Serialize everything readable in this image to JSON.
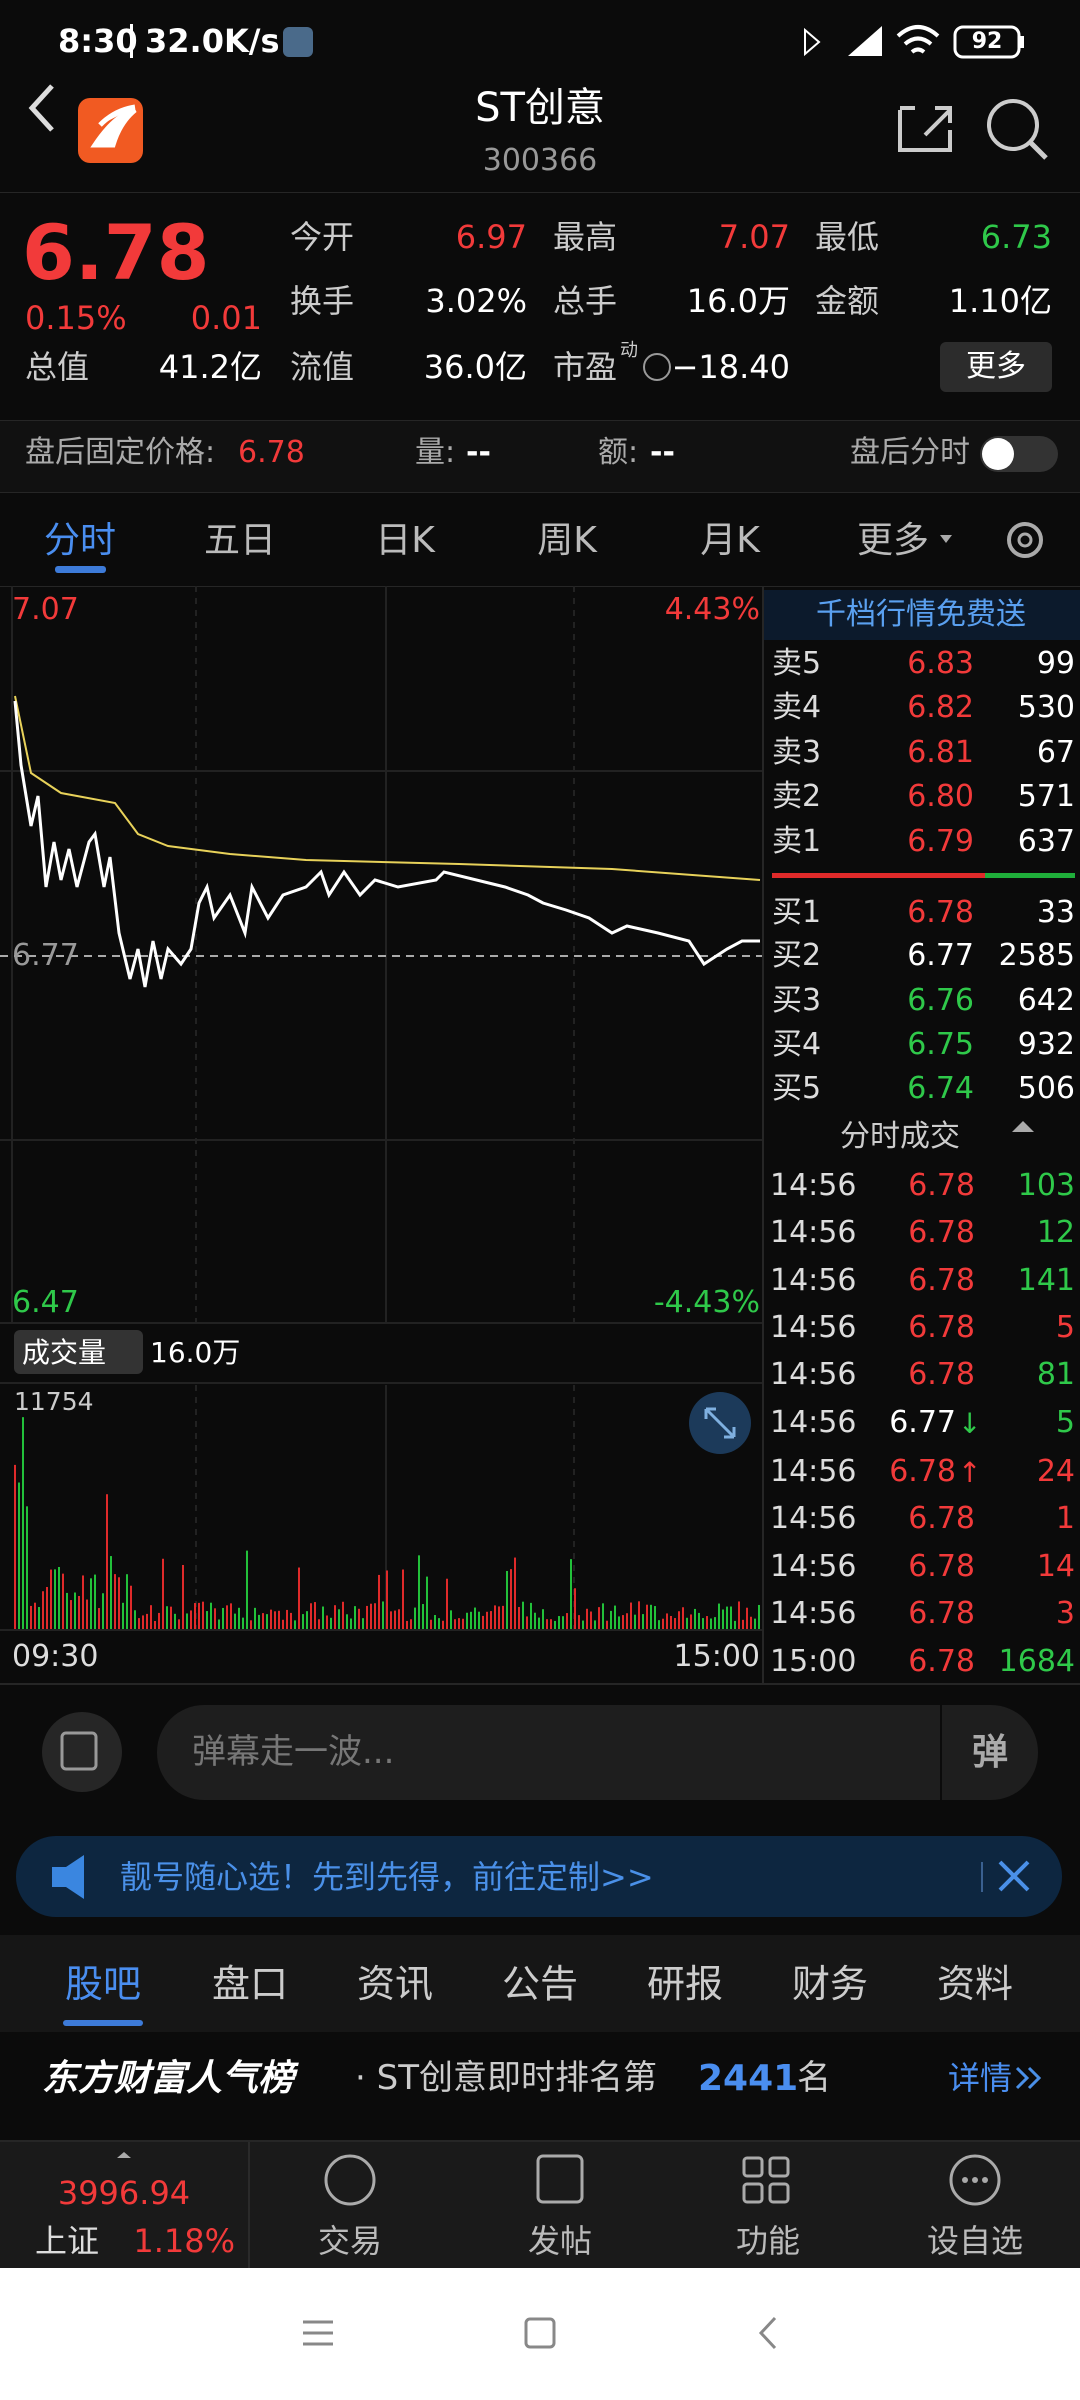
{
  "status": {
    "time": "8:30",
    "network": "32.0K/s",
    "battery": "92"
  },
  "header": {
    "title": "ST创意",
    "code": "300366"
  },
  "quote": {
    "price": "6.78",
    "change_pct": "0.15%",
    "change": "0.01",
    "fields": [
      {
        "label": "今开",
        "value": "6.97",
        "color": "red"
      },
      {
        "label": "最高",
        "value": "7.07",
        "color": "red"
      },
      {
        "label": "最低",
        "value": "6.73",
        "color": "green"
      },
      {
        "label": "换手",
        "value": "3.02%",
        "color": "white"
      },
      {
        "label": "总手",
        "value": "16.0万",
        "color": "white"
      },
      {
        "label": "金额",
        "value": "1.10亿",
        "color": "white"
      }
    ],
    "total_value_label": "总值",
    "total_value": "41.2亿",
    "float_value_label": "流值",
    "float_value": "36.0亿",
    "pe_label": "市盈",
    "pe_sup": "动",
    "pe": "−18.40",
    "more": "更多"
  },
  "after_hours": {
    "label": "盘后固定价格:",
    "price": "6.78",
    "volume_label": "量:",
    "volume": "--",
    "amount_label": "额:",
    "amount": "--",
    "toggle_label": "盘后分时"
  },
  "tabs": {
    "items": [
      "分时",
      "五日",
      "日K",
      "周K",
      "月K",
      "更多"
    ],
    "active": 0
  },
  "chart": {
    "high": "7.07",
    "high_pct": "4.43%",
    "mid": "6.77",
    "low": "6.47",
    "low_pct": "-4.43%",
    "volume_label": "成交量",
    "volume_total": "16.0万",
    "volume_max": "11754",
    "start": "09:30",
    "end": "15:00"
  },
  "order_book": {
    "promo": "千档行情免费送",
    "asks": [
      {
        "label": "卖5",
        "price": "6.83",
        "volume": "99",
        "color": "red"
      },
      {
        "label": "卖4",
        "price": "6.82",
        "volume": "530",
        "color": "red"
      },
      {
        "label": "卖3",
        "price": "6.81",
        "volume": "67",
        "color": "red"
      },
      {
        "label": "卖2",
        "price": "6.80",
        "volume": "571",
        "color": "red"
      },
      {
        "label": "卖1",
        "price": "6.79",
        "volume": "637",
        "color": "red"
      }
    ],
    "bids": [
      {
        "label": "买1",
        "price": "6.78",
        "volume": "33",
        "color": "red"
      },
      {
        "label": "买2",
        "price": "6.77",
        "volume": "2585",
        "color": "white"
      },
      {
        "label": "买3",
        "price": "6.76",
        "volume": "642",
        "color": "green"
      },
      {
        "label": "买4",
        "price": "6.75",
        "volume": "932",
        "color": "green"
      },
      {
        "label": "买5",
        "price": "6.74",
        "volume": "506",
        "color": "green"
      }
    ]
  },
  "trades": {
    "title": "分时成交",
    "rows": [
      {
        "time": "14:56",
        "price": "6.78",
        "volume": "103",
        "price_color": "red",
        "volume_color": "green"
      },
      {
        "time": "14:56",
        "price": "6.78",
        "volume": "12",
        "price_color": "red",
        "volume_color": "green"
      },
      {
        "time": "14:56",
        "price": "6.78",
        "volume": "141",
        "price_color": "red",
        "volume_color": "green"
      },
      {
        "time": "14:56",
        "price": "6.78",
        "volume": "5",
        "price_color": "red",
        "volume_color": "red"
      },
      {
        "time": "14:56",
        "price": "6.78",
        "volume": "81",
        "price_color": "red",
        "volume_color": "green"
      },
      {
        "time": "14:56",
        "price": "6.77",
        "arrow": "↓",
        "volume": "5",
        "price_color": "white",
        "volume_color": "green",
        "arrow_color": "green"
      },
      {
        "time": "14:56",
        "price": "6.78",
        "arrow": "↑",
        "volume": "24",
        "price_color": "red",
        "volume_color": "red",
        "arrow_color": "red"
      },
      {
        "time": "14:56",
        "price": "6.78",
        "volume": "1",
        "price_color": "red",
        "volume_color": "red"
      },
      {
        "time": "14:56",
        "price": "6.78",
        "volume": "14",
        "price_color": "red",
        "volume_color": "red"
      },
      {
        "time": "14:56",
        "price": "6.78",
        "volume": "3",
        "price_color": "red",
        "volume_color": "red"
      },
      {
        "time": "15:00",
        "price": "6.78",
        "volume": "1684",
        "price_color": "red",
        "volume_color": "green"
      }
    ]
  },
  "danmu": {
    "placeholder": "弹幕走一波...",
    "button": "弹"
  },
  "banner": {
    "text": "靓号随心选！先到先得，前往定制>>"
  },
  "sub_tabs": {
    "items": [
      "股吧",
      "盘口",
      "资讯",
      "公告",
      "研报",
      "财务",
      "资料"
    ],
    "active": 0
  },
  "ranking": {
    "brand": "东方财富人气榜",
    "text": "· ST创意即时排名第",
    "rank": "2441",
    "suffix": "名",
    "link": "详情"
  },
  "bottom_nav": {
    "index_value": "3996.94",
    "index_name": "上证",
    "index_pct": "1.18%",
    "items": [
      "交易",
      "发帖",
      "功能",
      "设自选"
    ]
  }
}
